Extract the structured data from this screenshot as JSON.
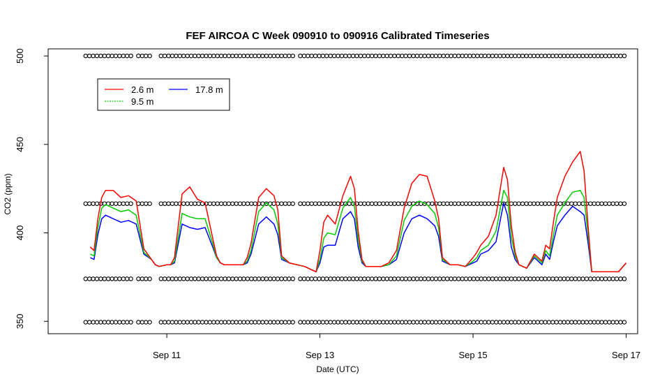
{
  "chart_data": {
    "type": "line",
    "title": "FEF AIRCOA C  Week 090910 to 090916  Calibrated Timeseries",
    "xlabel": "Date (UTC)",
    "ylabel": "CO2 (ppm)",
    "x_unit": "days since Sep 10 00:00 UTC",
    "xlim": [
      -0.55,
      7.15
    ],
    "ylim": [
      343,
      504
    ],
    "x_ticks": [
      {
        "value": 1,
        "label": "Sep 11"
      },
      {
        "value": 3,
        "label": "Sep 13"
      },
      {
        "value": 5,
        "label": "Sep 15"
      },
      {
        "value": 7,
        "label": "Sep 17"
      }
    ],
    "y_ticks": [
      {
        "value": 350,
        "label": "350"
      },
      {
        "value": 400,
        "label": "400"
      },
      {
        "value": 450,
        "label": "450"
      },
      {
        "value": 500,
        "label": "500"
      }
    ],
    "legend": {
      "position": "top-left",
      "entries": [
        {
          "name": "2.6 m",
          "color": "#ff0000"
        },
        {
          "name": "9.5 m",
          "color": "#00cc00"
        },
        {
          "name": "17.8 m",
          "color": "#0000ff"
        }
      ]
    },
    "series": [
      {
        "name": "17.8 m",
        "color": "#0000ff",
        "x": [
          0.0,
          0.05,
          0.1,
          0.15,
          0.2,
          0.3,
          0.4,
          0.5,
          0.6,
          0.7,
          0.8,
          0.85,
          0.9,
          1.0,
          1.05,
          1.1,
          1.2,
          1.3,
          1.4,
          1.5,
          1.6,
          1.65,
          1.7,
          1.75,
          1.8,
          1.9,
          2.0,
          2.05,
          2.1,
          2.2,
          2.3,
          2.4,
          2.45,
          2.5,
          2.6,
          2.7,
          2.8,
          2.9,
          2.95,
          3.0,
          3.05,
          3.1,
          3.2,
          3.3,
          3.4,
          3.45,
          3.5,
          3.55,
          3.6,
          3.7,
          3.8,
          3.9,
          4.0,
          4.1,
          4.2,
          4.3,
          4.4,
          4.5,
          4.55,
          4.6,
          4.7,
          4.8,
          4.9,
          5.0,
          5.05,
          5.1,
          5.2,
          5.3,
          5.4,
          5.45,
          5.5,
          5.55,
          5.6,
          5.7,
          5.8,
          5.9,
          5.95,
          6.0,
          6.05,
          6.1,
          6.2,
          6.3,
          6.4,
          6.45,
          6.5,
          6.55,
          6.6,
          6.7,
          6.8,
          6.9,
          7.0
        ],
        "y": [
          386,
          385,
          399,
          408,
          410,
          408,
          406,
          407,
          405,
          388,
          385,
          382,
          381,
          382,
          382,
          383,
          405,
          403,
          402,
          403,
          392,
          386,
          383,
          382,
          382,
          382,
          382,
          383,
          388,
          405,
          409,
          405,
          399,
          385,
          383,
          382,
          381,
          379,
          378,
          383,
          392,
          393,
          393,
          408,
          412,
          408,
          392,
          383,
          381,
          381,
          381,
          382,
          385,
          400,
          408,
          410,
          408,
          404,
          398,
          384,
          382,
          382,
          381,
          383,
          384,
          388,
          390,
          395,
          417,
          410,
          392,
          385,
          382,
          380,
          386,
          382,
          388,
          385,
          395,
          404,
          410,
          415,
          412,
          410,
          395,
          378,
          378,
          378,
          378,
          378,
          383
        ]
      },
      {
        "name": "9.5 m",
        "color": "#00cc00",
        "x": [
          0.0,
          0.05,
          0.1,
          0.15,
          0.2,
          0.3,
          0.4,
          0.5,
          0.6,
          0.7,
          0.8,
          0.85,
          0.9,
          1.0,
          1.05,
          1.1,
          1.2,
          1.3,
          1.4,
          1.5,
          1.6,
          1.65,
          1.7,
          1.75,
          1.8,
          1.9,
          2.0,
          2.05,
          2.1,
          2.2,
          2.3,
          2.4,
          2.45,
          2.5,
          2.6,
          2.7,
          2.8,
          2.9,
          2.95,
          3.0,
          3.05,
          3.1,
          3.2,
          3.3,
          3.4,
          3.45,
          3.5,
          3.55,
          3.6,
          3.7,
          3.8,
          3.9,
          4.0,
          4.1,
          4.2,
          4.3,
          4.4,
          4.5,
          4.55,
          4.6,
          4.7,
          4.8,
          4.9,
          5.0,
          5.05,
          5.1,
          5.2,
          5.3,
          5.4,
          5.45,
          5.5,
          5.55,
          5.6,
          5.7,
          5.8,
          5.9,
          5.95,
          6.0,
          6.05,
          6.1,
          6.2,
          6.3,
          6.4,
          6.45,
          6.5,
          6.55,
          6.6,
          6.7,
          6.8,
          6.9,
          7.0
        ],
        "y": [
          388,
          387,
          403,
          414,
          416,
          414,
          412,
          413,
          410,
          389,
          385,
          382,
          381,
          382,
          382,
          384,
          411,
          409,
          408,
          408,
          394,
          386,
          383,
          382,
          382,
          382,
          382,
          384,
          390,
          412,
          417,
          413,
          405,
          386,
          383,
          382,
          381,
          379,
          378,
          385,
          397,
          400,
          399,
          414,
          420,
          415,
          396,
          384,
          381,
          381,
          381,
          382,
          387,
          407,
          415,
          418,
          416,
          411,
          403,
          385,
          382,
          382,
          381,
          384,
          386,
          390,
          393,
          401,
          424,
          420,
          398,
          387,
          382,
          380,
          387,
          383,
          390,
          387,
          399,
          410,
          417,
          423,
          424,
          420,
          400,
          378,
          378,
          378,
          378,
          378,
          383
        ]
      },
      {
        "name": "2.6 m",
        "color": "#ff0000",
        "x": [
          0.0,
          0.05,
          0.1,
          0.15,
          0.2,
          0.3,
          0.4,
          0.5,
          0.6,
          0.7,
          0.8,
          0.85,
          0.9,
          1.0,
          1.05,
          1.1,
          1.2,
          1.3,
          1.4,
          1.5,
          1.6,
          1.65,
          1.7,
          1.75,
          1.8,
          1.9,
          2.0,
          2.05,
          2.1,
          2.2,
          2.3,
          2.4,
          2.45,
          2.5,
          2.6,
          2.7,
          2.8,
          2.9,
          2.95,
          3.0,
          3.05,
          3.1,
          3.2,
          3.3,
          3.4,
          3.45,
          3.5,
          3.55,
          3.6,
          3.7,
          3.8,
          3.9,
          4.0,
          4.1,
          4.2,
          4.3,
          4.4,
          4.5,
          4.55,
          4.6,
          4.7,
          4.8,
          4.9,
          5.0,
          5.05,
          5.1,
          5.2,
          5.3,
          5.4,
          5.45,
          5.5,
          5.55,
          5.6,
          5.7,
          5.8,
          5.9,
          5.95,
          6.0,
          6.05,
          6.1,
          6.2,
          6.3,
          6.4,
          6.45,
          6.5,
          6.55,
          6.6,
          6.7,
          6.8,
          6.9,
          7.0
        ],
        "y": [
          392,
          390,
          408,
          420,
          424,
          424,
          420,
          421,
          418,
          391,
          385,
          382,
          381,
          382,
          382,
          386,
          422,
          426,
          419,
          417,
          397,
          387,
          383,
          382,
          382,
          382,
          382,
          386,
          394,
          420,
          425,
          421,
          413,
          387,
          383,
          382,
          381,
          379,
          378,
          390,
          406,
          410,
          405,
          421,
          432,
          425,
          401,
          385,
          381,
          381,
          381,
          383,
          390,
          414,
          428,
          433,
          432,
          418,
          408,
          386,
          382,
          382,
          381,
          386,
          389,
          393,
          398,
          410,
          437,
          430,
          404,
          389,
          382,
          380,
          388,
          384,
          393,
          391,
          406,
          420,
          432,
          440,
          446,
          435,
          405,
          378,
          378,
          378,
          378,
          378,
          383
        ]
      }
    ],
    "reference_markers": [
      {
        "y": 500,
        "description": "row of circle markers"
      },
      {
        "y": 416.5,
        "description": "row of circle markers"
      },
      {
        "y": 374,
        "description": "row of circle markers"
      },
      {
        "y": 349.5,
        "description": "row of circle markers"
      }
    ]
  }
}
